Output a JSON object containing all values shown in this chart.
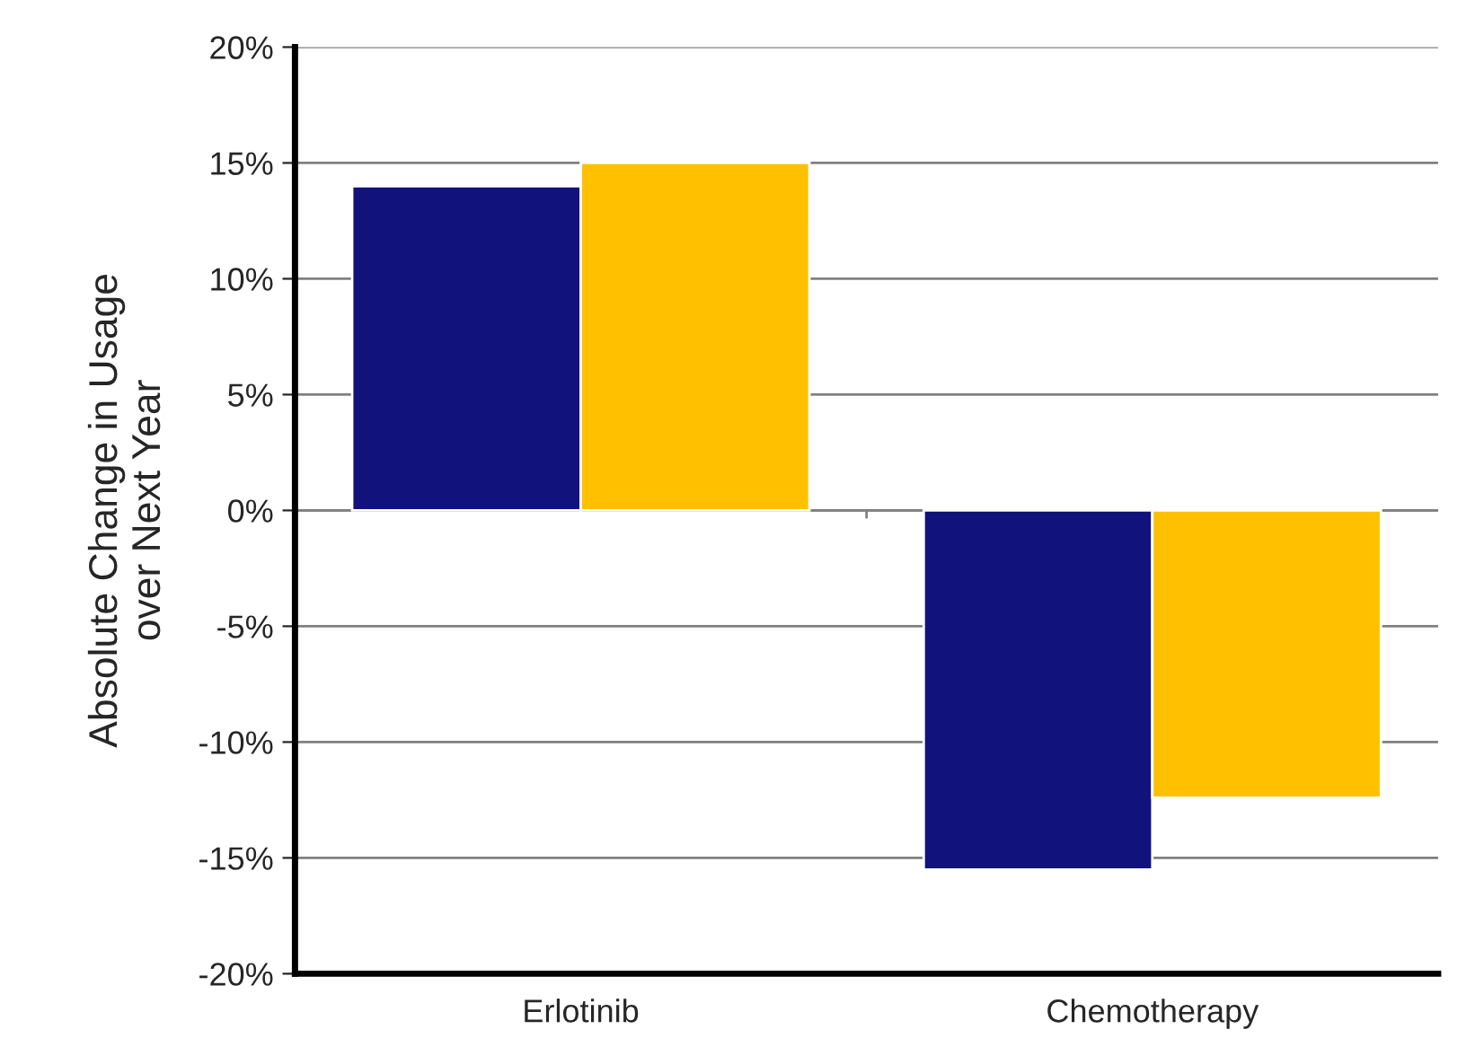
{
  "chart_data": {
    "type": "bar",
    "ylabel": "Absolute Change in Usage\nover Next Year",
    "categories": [
      "Erlotinib",
      "Chemotherapy"
    ],
    "series": [
      {
        "color": "#12127d",
        "values": [
          14.0,
          -15.5
        ]
      },
      {
        "color": "#ffc000",
        "values": [
          15.0,
          -12.4
        ]
      }
    ],
    "ylim": [
      -20,
      20
    ],
    "yticks": [
      {
        "value": -20,
        "label": "-20%"
      },
      {
        "value": -15,
        "label": "-15%"
      },
      {
        "value": -10,
        "label": "-10%"
      },
      {
        "value": -5,
        "label": "-5%"
      },
      {
        "value": 0,
        "label": "0%"
      },
      {
        "value": 5,
        "label": "5%"
      },
      {
        "value": 10,
        "label": "10%"
      },
      {
        "value": 15,
        "label": "15%"
      },
      {
        "value": 20,
        "label": "20%"
      }
    ],
    "grid": "y",
    "legend": false
  }
}
